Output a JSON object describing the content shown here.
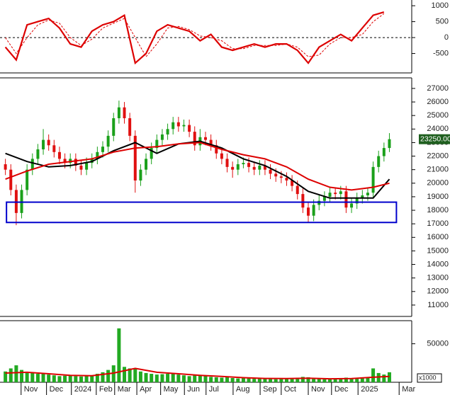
{
  "chart_data": [
    {
      "type": "line",
      "xlim": [
        -1,
        75
      ],
      "ylim": [
        -1110,
        1180
      ],
      "yticks": [
        1000,
        500,
        0,
        -500
      ],
      "zero_line": true,
      "x": [
        0,
        2,
        4,
        6,
        8,
        10,
        12,
        14,
        16,
        18,
        20,
        22,
        24,
        26,
        28,
        30,
        32,
        34,
        36,
        38,
        40,
        42,
        44,
        46,
        48,
        50,
        52,
        54,
        56,
        58,
        60,
        62,
        64,
        66,
        68,
        70
      ],
      "series": [
        {
          "color": "#dd0000",
          "values": [
            -300,
            -700,
            400,
            500,
            600,
            300,
            -200,
            -300,
            200,
            400,
            500,
            700,
            -800,
            -500,
            200,
            400,
            300,
            200,
            -100,
            100,
            -300,
            -400,
            -300,
            -200,
            -300,
            -200,
            -200,
            -400,
            -800,
            -300,
            -100,
            100,
            -100,
            300,
            700,
            800
          ]
        },
        {
          "color": "#dd0000",
          "dashed": true,
          "values": [
            0,
            -500,
            0,
            400,
            550,
            450,
            0,
            -250,
            -50,
            300,
            450,
            600,
            0,
            -600,
            -200,
            300,
            350,
            250,
            50,
            0,
            -100,
            -350,
            -350,
            -250,
            -250,
            -250,
            -200,
            -300,
            -600,
            -550,
            -200,
            0,
            0,
            100,
            500,
            750
          ]
        }
      ]
    },
    {
      "type": "candlestick",
      "xlim": [
        -1,
        75
      ],
      "ylim": [
        10160,
        27780
      ],
      "yticks": [
        11000,
        12000,
        13000,
        14000,
        15000,
        16000,
        17000,
        18000,
        19000,
        20000,
        21000,
        22000,
        23000,
        24000,
        25000,
        26000,
        27000
      ],
      "up_color": "#1aa01a",
      "down_color": "#e01010",
      "last_label": "23250.00",
      "last_label_color": "#1f5f1f",
      "x": [
        0,
        1,
        2,
        3,
        4,
        5,
        6,
        7,
        8,
        9,
        10,
        11,
        12,
        13,
        14,
        15,
        16,
        17,
        18,
        19,
        20,
        21,
        22,
        23,
        24,
        25,
        26,
        27,
        28,
        29,
        30,
        31,
        32,
        33,
        34,
        35,
        36,
        37,
        38,
        39,
        40,
        41,
        42,
        43,
        44,
        45,
        46,
        47,
        48,
        49,
        50,
        51,
        52,
        53,
        54,
        55,
        56,
        57,
        58,
        59,
        60,
        61,
        62,
        63,
        64,
        65,
        66,
        67,
        68,
        69,
        70,
        71
      ],
      "open": [
        21400,
        21000,
        19500,
        17800,
        19500,
        21000,
        21800,
        22500,
        23200,
        22800,
        22300,
        21800,
        21500,
        21800,
        21300,
        21000,
        21500,
        21800,
        22300,
        22700,
        23500,
        24800,
        25600,
        24800,
        23500,
        20200,
        21000,
        21800,
        22600,
        23200,
        23600,
        24000,
        24500,
        24200,
        24300,
        23800,
        22800,
        23400,
        23200,
        22800,
        22200,
        21800,
        21200,
        21000,
        21400,
        21500,
        21200,
        21000,
        21300,
        21000,
        20700,
        20500,
        20400,
        20200,
        19800,
        19200,
        18200,
        17600,
        18400,
        18700,
        19000,
        19300,
        19200,
        19400,
        18200,
        18500,
        18900,
        19100,
        19300,
        21200,
        22000,
        22600
      ],
      "high": [
        21800,
        21400,
        19900,
        19900,
        21400,
        22200,
        22900,
        24000,
        23600,
        23200,
        22700,
        22200,
        22200,
        22200,
        21700,
        21900,
        22200,
        22700,
        23100,
        23900,
        25200,
        26100,
        26000,
        25200,
        23900,
        21400,
        22200,
        23000,
        23600,
        24000,
        24400,
        24900,
        24900,
        24700,
        24700,
        24200,
        24000,
        23800,
        23600,
        23200,
        22600,
        22200,
        21600,
        21800,
        21900,
        21900,
        21600,
        21700,
        21700,
        21400,
        21100,
        20900,
        20800,
        20600,
        20200,
        19600,
        18600,
        18800,
        19100,
        19400,
        19700,
        19700,
        19800,
        19800,
        18900,
        19300,
        19500,
        19700,
        21600,
        22400,
        23000,
        23700
      ],
      "low": [
        20600,
        19100,
        16900,
        17400,
        19100,
        20600,
        21400,
        22100,
        22400,
        21900,
        21400,
        21100,
        21100,
        20900,
        20600,
        20600,
        21100,
        21400,
        21900,
        22300,
        23100,
        24400,
        24400,
        23100,
        19300,
        19800,
        20600,
        21400,
        22200,
        22800,
        23200,
        23600,
        23800,
        23800,
        23400,
        22400,
        22400,
        22800,
        22400,
        21800,
        21400,
        20800,
        20400,
        20600,
        21100,
        20800,
        20600,
        20600,
        20600,
        20300,
        20100,
        20000,
        19800,
        19400,
        18800,
        17800,
        17100,
        17200,
        18000,
        18300,
        18600,
        18800,
        18800,
        17800,
        17800,
        18100,
        18500,
        18700,
        18900,
        20800,
        21600,
        22300
      ],
      "close": [
        21000,
        19500,
        17800,
        19500,
        21000,
        21800,
        22500,
        23200,
        22800,
        22300,
        21800,
        21500,
        21800,
        21300,
        21000,
        21500,
        21800,
        22300,
        22700,
        23500,
        24800,
        25600,
        24800,
        23500,
        20200,
        21000,
        21800,
        22600,
        23200,
        23600,
        24000,
        24500,
        24200,
        24300,
        23800,
        22800,
        23400,
        23200,
        22800,
        22200,
        21800,
        21200,
        21000,
        21400,
        21500,
        21200,
        21000,
        21300,
        21000,
        20700,
        20500,
        20400,
        20200,
        19800,
        19200,
        18200,
        17600,
        18400,
        18700,
        19000,
        19300,
        19200,
        19400,
        18200,
        18500,
        18900,
        19100,
        19300,
        21200,
        22000,
        22600,
        23250
      ],
      "moving_averages": [
        {
          "color": "#000000",
          "x": [
            0,
            4,
            8,
            12,
            16,
            20,
            24,
            28,
            32,
            36,
            40,
            44,
            48,
            52,
            56,
            60,
            64,
            68,
            71
          ],
          "values": [
            22200,
            21600,
            21200,
            21300,
            21600,
            22400,
            23000,
            22200,
            22900,
            23100,
            22600,
            21800,
            21300,
            20500,
            19400,
            18900,
            18900,
            18900,
            20300
          ]
        },
        {
          "color": "#dd0000",
          "x": [
            0,
            4,
            8,
            12,
            16,
            20,
            24,
            28,
            32,
            36,
            40,
            44,
            48,
            52,
            56,
            60,
            64,
            68,
            71
          ],
          "values": [
            20300,
            20900,
            21400,
            21600,
            21800,
            22300,
            22600,
            22700,
            22900,
            23000,
            22500,
            22100,
            21800,
            21200,
            20300,
            19700,
            19500,
            19700,
            20000
          ]
        }
      ],
      "zone": {
        "color": "#0000cc",
        "start": 0.2,
        "end": 72.3,
        "low": 17100,
        "high": 18600
      }
    },
    {
      "type": "bar",
      "xlim": [
        -1,
        75
      ],
      "ylim": [
        0,
        80000
      ],
      "yticks": [
        50000
      ],
      "color": "#22aa22",
      "unit_label": "x1000",
      "x": [
        0,
        1,
        2,
        3,
        4,
        5,
        6,
        7,
        8,
        9,
        10,
        11,
        12,
        13,
        14,
        15,
        16,
        17,
        18,
        19,
        20,
        21,
        22,
        23,
        24,
        25,
        26,
        27,
        28,
        29,
        30,
        31,
        32,
        33,
        34,
        35,
        36,
        37,
        38,
        39,
        40,
        41,
        42,
        43,
        44,
        45,
        46,
        47,
        48,
        49,
        50,
        51,
        52,
        53,
        54,
        55,
        56,
        57,
        58,
        59,
        60,
        61,
        62,
        63,
        64,
        65,
        66,
        67,
        68,
        69,
        70,
        71
      ],
      "values": [
        14000,
        18000,
        22000,
        16000,
        12000,
        13000,
        11000,
        12000,
        10000,
        9000,
        8000,
        8500,
        9000,
        8000,
        7500,
        8000,
        9000,
        11000,
        13000,
        16000,
        22000,
        70000,
        20000,
        18000,
        17000,
        14000,
        12000,
        11000,
        10000,
        10500,
        11000,
        12000,
        10000,
        9000,
        8000,
        9000,
        8500,
        8000,
        7000,
        6500,
        6000,
        6500,
        5500,
        5000,
        5500,
        5000,
        4500,
        4800,
        4500,
        4200,
        4000,
        4500,
        5000,
        5500,
        6000,
        7000,
        6500,
        5000,
        4500,
        4000,
        3800,
        4200,
        4500,
        6000,
        5000,
        4500,
        5000,
        5500,
        18000,
        12000,
        10000,
        13000
      ],
      "average": {
        "color": "#dd0000",
        "x": [
          0,
          4,
          8,
          12,
          16,
          20,
          24,
          28,
          32,
          36,
          40,
          44,
          48,
          52,
          56,
          60,
          64,
          68,
          71
        ],
        "values": [
          12000,
          13000,
          11000,
          9000,
          8500,
          12000,
          18000,
          13000,
          11000,
          9000,
          7500,
          6000,
          5000,
          4800,
          5200,
          4500,
          4800,
          6500,
          7500
        ]
      },
      "xticks": [
        {
          "value": 2.9,
          "label": "Nov"
        },
        {
          "value": 7.6,
          "label": "Dec"
        },
        {
          "value": 12.2,
          "label": "2024"
        },
        {
          "value": 16.8,
          "label": "Feb"
        },
        {
          "value": 20.2,
          "label": "Mar"
        },
        {
          "value": 24.3,
          "label": "Apr"
        },
        {
          "value": 28.7,
          "label": "May"
        },
        {
          "value": 33.1,
          "label": "Jun"
        },
        {
          "value": 37.1,
          "label": "Jul"
        },
        {
          "value": 42.1,
          "label": "Aug"
        },
        {
          "value": 47.1,
          "label": "Sep"
        },
        {
          "value": 51,
          "label": "Oct"
        },
        {
          "value": 56,
          "label": "Nov"
        },
        {
          "value": 60.3,
          "label": "Dec"
        },
        {
          "value": 65.2,
          "label": "2025"
        },
        {
          "value": 72.8,
          "label": "Mar"
        }
      ]
    }
  ]
}
